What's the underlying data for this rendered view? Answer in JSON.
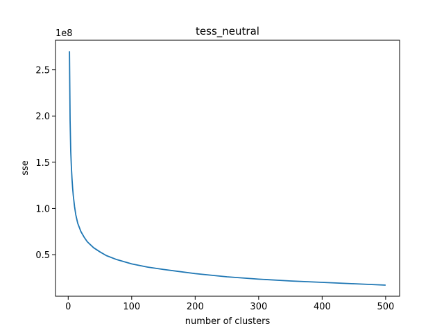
{
  "chart_data": {
    "type": "line",
    "title": "tess_neutral",
    "xlabel": "number of clusters",
    "ylabel": "sse",
    "y_offset_label": "1e8",
    "xlim": [
      -20,
      522
    ],
    "ylim": [
      0.05,
      2.82
    ],
    "xticks": [
      0,
      100,
      200,
      300,
      400,
      500
    ],
    "xtick_labels": [
      "0",
      "100",
      "200",
      "300",
      "400",
      "500"
    ],
    "yticks": [
      0.5,
      1.0,
      1.5,
      2.0,
      2.5
    ],
    "ytick_labels": [
      "0.5",
      "1.0",
      "1.5",
      "2.0",
      "2.5"
    ],
    "grid": false,
    "series": [
      {
        "color": "#1f77b4",
        "x": [
          2,
          3,
          4,
          5,
          6,
          7,
          8,
          10,
          12,
          15,
          20,
          25,
          30,
          40,
          50,
          60,
          75,
          100,
          125,
          150,
          200,
          250,
          300,
          350,
          400,
          450,
          500
        ],
        "y": [
          2.7,
          1.95,
          1.62,
          1.45,
          1.32,
          1.22,
          1.14,
          1.02,
          0.93,
          0.84,
          0.75,
          0.69,
          0.64,
          0.575,
          0.53,
          0.49,
          0.45,
          0.4,
          0.365,
          0.34,
          0.295,
          0.26,
          0.235,
          0.215,
          0.2,
          0.185,
          0.17
        ]
      }
    ]
  }
}
